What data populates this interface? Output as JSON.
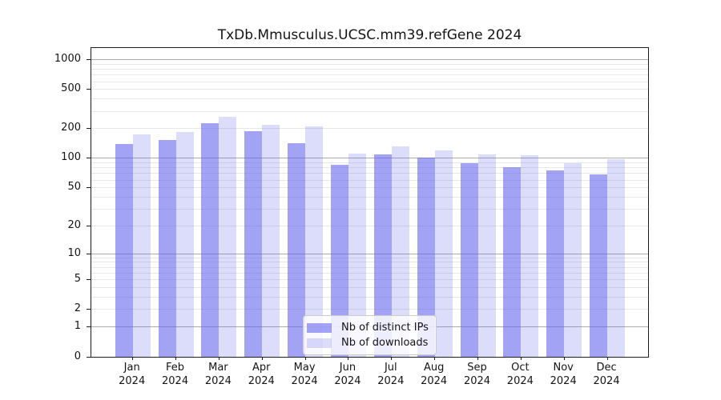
{
  "chart_data": {
    "type": "bar",
    "title": "TxDb.Mmusculus.UCSC.mm39.refGene 2024",
    "categories": [
      "Jan",
      "Feb",
      "Mar",
      "Apr",
      "May",
      "Jun",
      "Jul",
      "Aug",
      "Sep",
      "Oct",
      "Nov",
      "Dec"
    ],
    "category_year": "2024",
    "series": [
      {
        "name": "Nb of distinct IPs",
        "color": "rgba(102,102,238,0.6)",
        "base_hex": "#6666ee",
        "values": [
          141,
          155,
          230,
          190,
          142,
          86,
          110,
          102,
          90,
          81,
          76,
          68
        ]
      },
      {
        "name": "Nb of downloads",
        "color": "rgba(102,102,238,0.23)",
        "base_hex": "#6666ee",
        "values": [
          176,
          187,
          264,
          220,
          210,
          113,
          132,
          121,
          109,
          108,
          89,
          99
        ]
      }
    ],
    "yscale": "log1p",
    "ylim": [
      0,
      1315
    ],
    "yticks": [
      1000,
      500,
      200,
      100,
      50,
      20,
      10,
      5,
      2,
      1,
      0
    ],
    "grid": {
      "major": [
        1,
        10,
        100,
        1000
      ],
      "minor": [
        2,
        3,
        4,
        5,
        6,
        7,
        8,
        9,
        20,
        30,
        40,
        50,
        60,
        70,
        80,
        90,
        200,
        300,
        400,
        500,
        600,
        700,
        800,
        900
      ],
      "major_color": "#ababab",
      "minor_color": "#e7e7e7"
    },
    "legend": {
      "position": "lower center",
      "items": [
        "Nb of distinct IPs",
        "Nb of downloads"
      ]
    },
    "frame_color": "#1c1c1c",
    "text_color": "#141414",
    "background": "#ffffff"
  }
}
